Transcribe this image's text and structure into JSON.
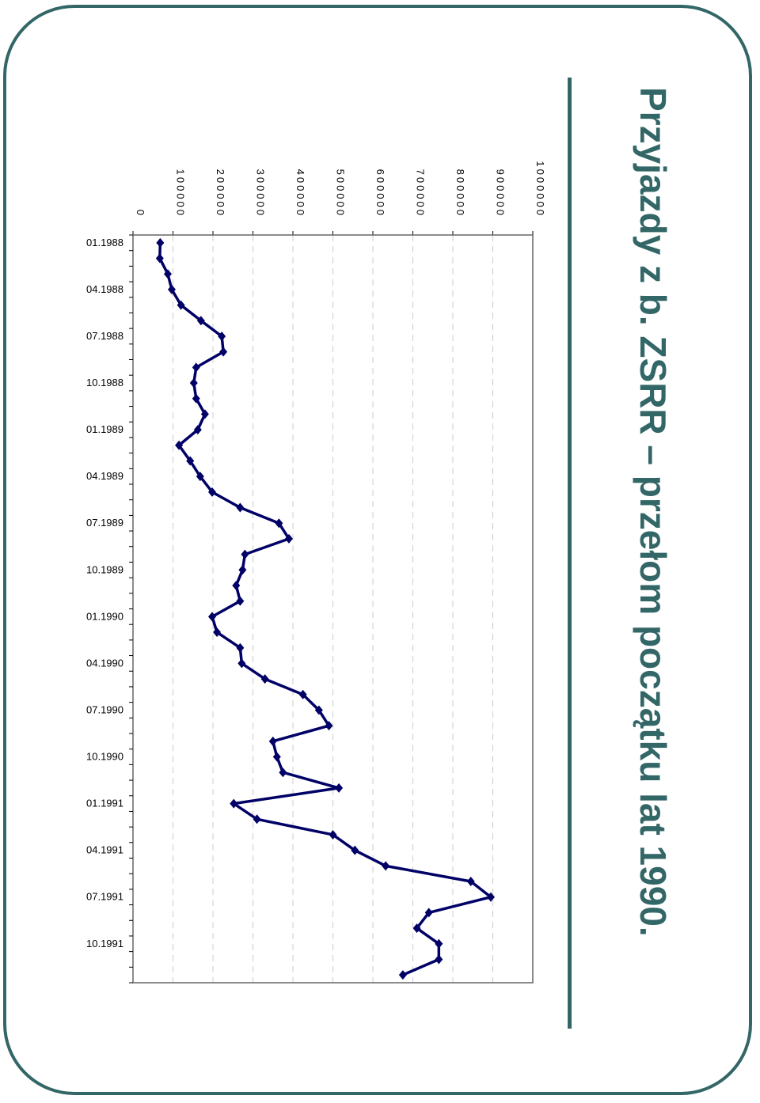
{
  "slide": {
    "title": "Przyjazdy z b. ZSRR – przełom początku lat 1990.",
    "colors": {
      "accent": "#336666",
      "series": "#000066",
      "frame": "#336666"
    }
  },
  "chart_data": {
    "type": "line",
    "title": "",
    "xlabel": "",
    "ylabel": "",
    "ylim": [
      0,
      1000000
    ],
    "y_ticks": [
      "0",
      "100000",
      "200000",
      "300000",
      "400000",
      "500000",
      "600000",
      "700000",
      "800000",
      "900000",
      "1000000"
    ],
    "x_tick_labels": [
      "01.1988",
      "04.1988",
      "07.1988",
      "10.1988",
      "01.1989",
      "04.1989",
      "07.1989",
      "10.1989",
      "01.1990",
      "04.1990",
      "07.1990",
      "10.1990",
      "01.1991",
      "04.1991",
      "07.1991",
      "10.1991"
    ],
    "grid": true,
    "orientation": "rotated-90",
    "series": [
      {
        "marker": "diamond",
        "x": [
          "01.1988",
          "02.1988",
          "03.1988",
          "04.1988",
          "05.1988",
          "06.1988",
          "07.1988",
          "08.1988",
          "09.1988",
          "10.1988",
          "11.1988",
          "12.1988",
          "01.1989",
          "02.1989",
          "03.1989",
          "04.1989",
          "05.1989",
          "06.1989",
          "07.1989",
          "08.1989",
          "09.1989",
          "10.1989",
          "11.1989",
          "12.1989",
          "01.1990",
          "02.1990",
          "03.1990",
          "04.1990",
          "05.1990",
          "06.1990",
          "07.1990",
          "08.1990",
          "09.1990",
          "10.1990",
          "11.1990",
          "12.1990",
          "01.1991",
          "02.1991",
          "03.1991",
          "04.1991",
          "05.1991",
          "06.1991",
          "07.1991",
          "08.1991",
          "09.1991",
          "10.1991",
          "11.1991",
          "12.1991"
        ],
        "values": [
          68000,
          67000,
          87000,
          97000,
          120000,
          170000,
          222000,
          226000,
          158000,
          152000,
          158000,
          180000,
          162000,
          115000,
          143000,
          168000,
          198000,
          268000,
          365000,
          390000,
          280000,
          274000,
          258000,
          268000,
          198000,
          210000,
          268000,
          272000,
          330000,
          425000,
          465000,
          490000,
          350000,
          360000,
          375000,
          515000,
          252000,
          310000,
          500000,
          555000,
          632000,
          845000,
          895000,
          740000,
          710000,
          765000,
          765000,
          675000
        ]
      }
    ]
  }
}
